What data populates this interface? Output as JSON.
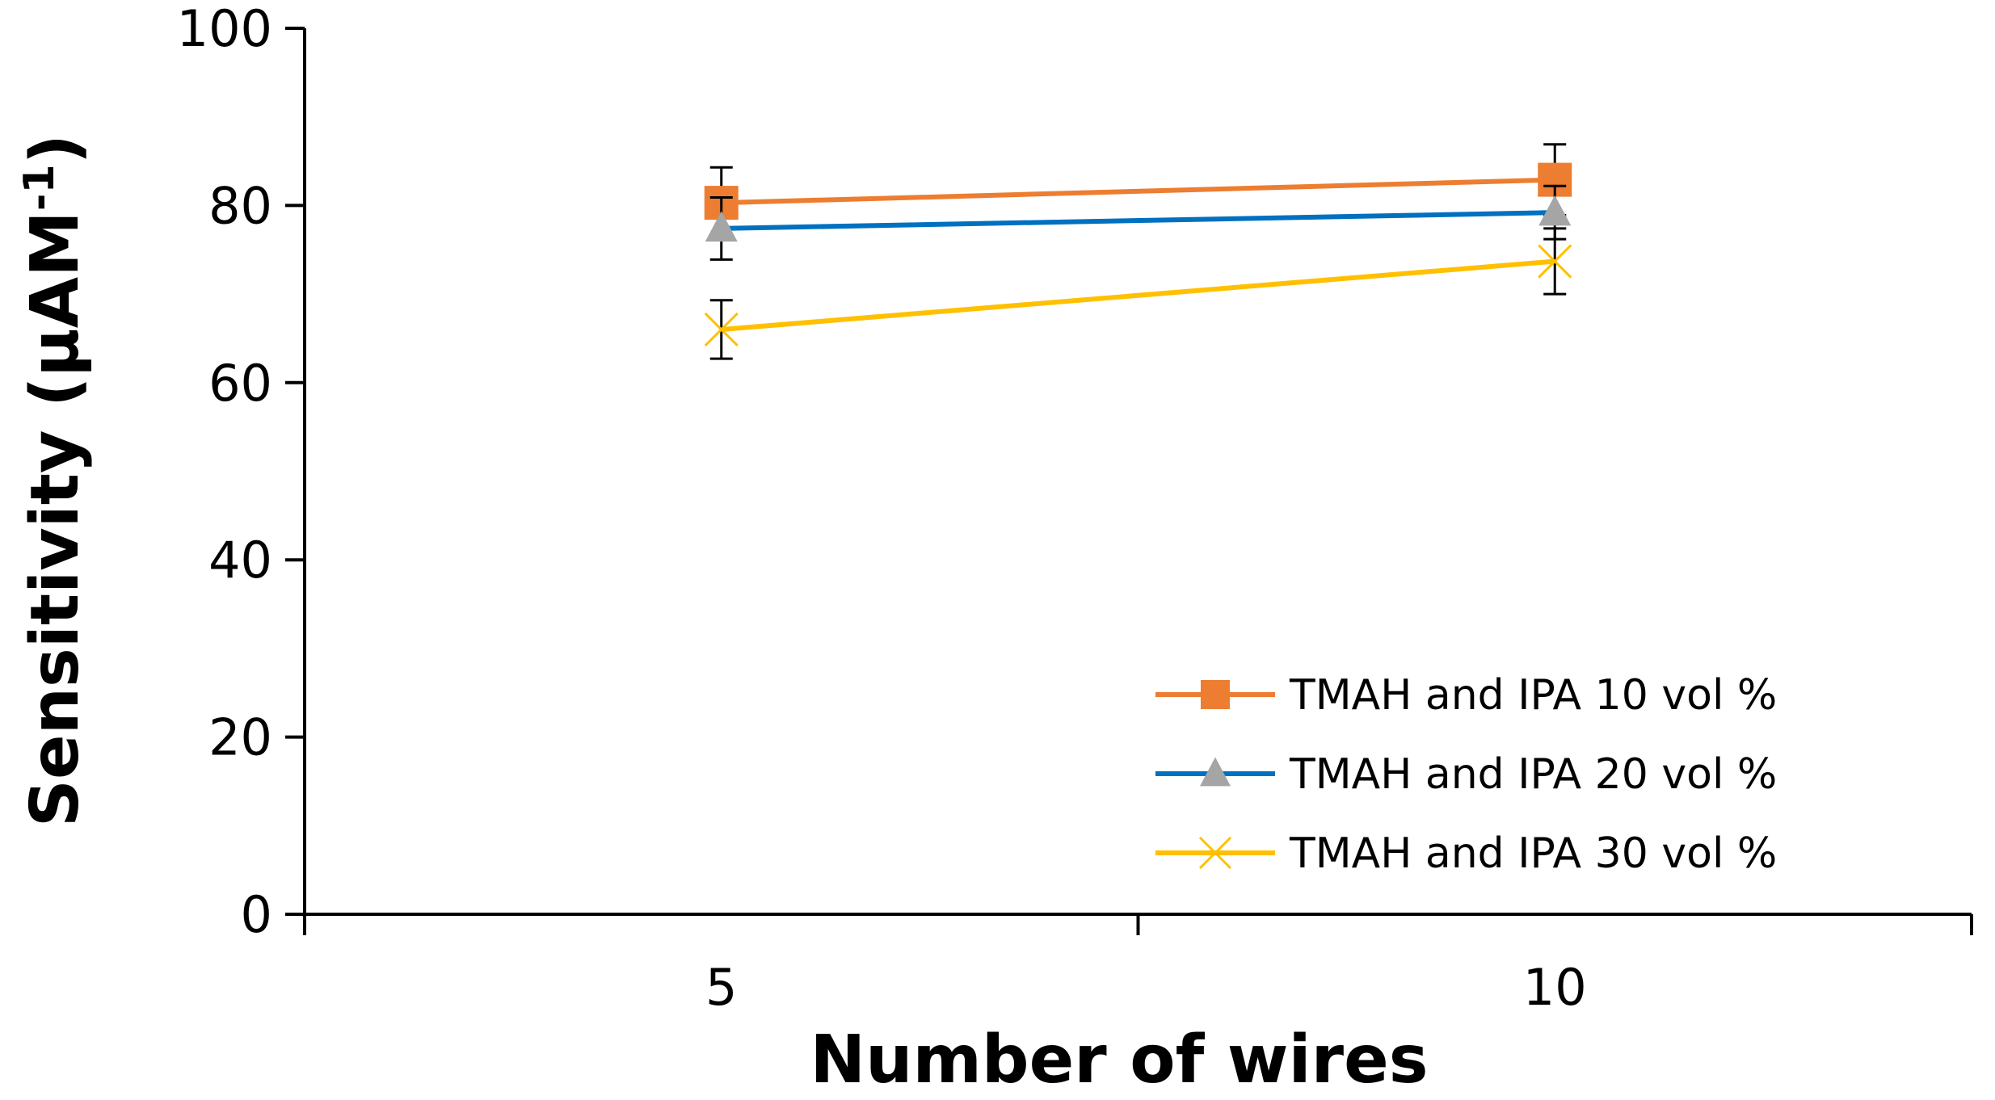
{
  "chart_data": {
    "type": "line",
    "title": "",
    "xlabel": "Number of wires",
    "ylabel_main": "Sensitivity (µAM",
    "ylabel_sup": "-1",
    "ylabel_close": ")",
    "categories": [
      "5",
      "10"
    ],
    "ylim": [
      0,
      100
    ],
    "yticks": [
      0,
      20,
      40,
      60,
      80,
      100
    ],
    "grid": false,
    "legend_position": "bottom-right",
    "series": [
      {
        "name": "TMAH and IPA 10 vol %",
        "line_color": "#ED7D31",
        "marker": "square",
        "marker_color": "#ED7D31",
        "values": [
          80.3,
          82.9
        ],
        "error": [
          4.0,
          4.0
        ]
      },
      {
        "name": "TMAH and IPA 20 vol %",
        "line_color": "#0070C0",
        "marker": "triangle",
        "marker_color": "#A5A5A5",
        "values": [
          77.4,
          79.2
        ],
        "error": [
          3.5,
          3.0
        ]
      },
      {
        "name": "TMAH and IPA 30 vol %",
        "line_color": "#FFC000",
        "marker": "cross",
        "marker_color": "#FFC000",
        "values": [
          66.0,
          73.7
        ],
        "error": [
          3.3,
          3.7
        ]
      }
    ]
  }
}
